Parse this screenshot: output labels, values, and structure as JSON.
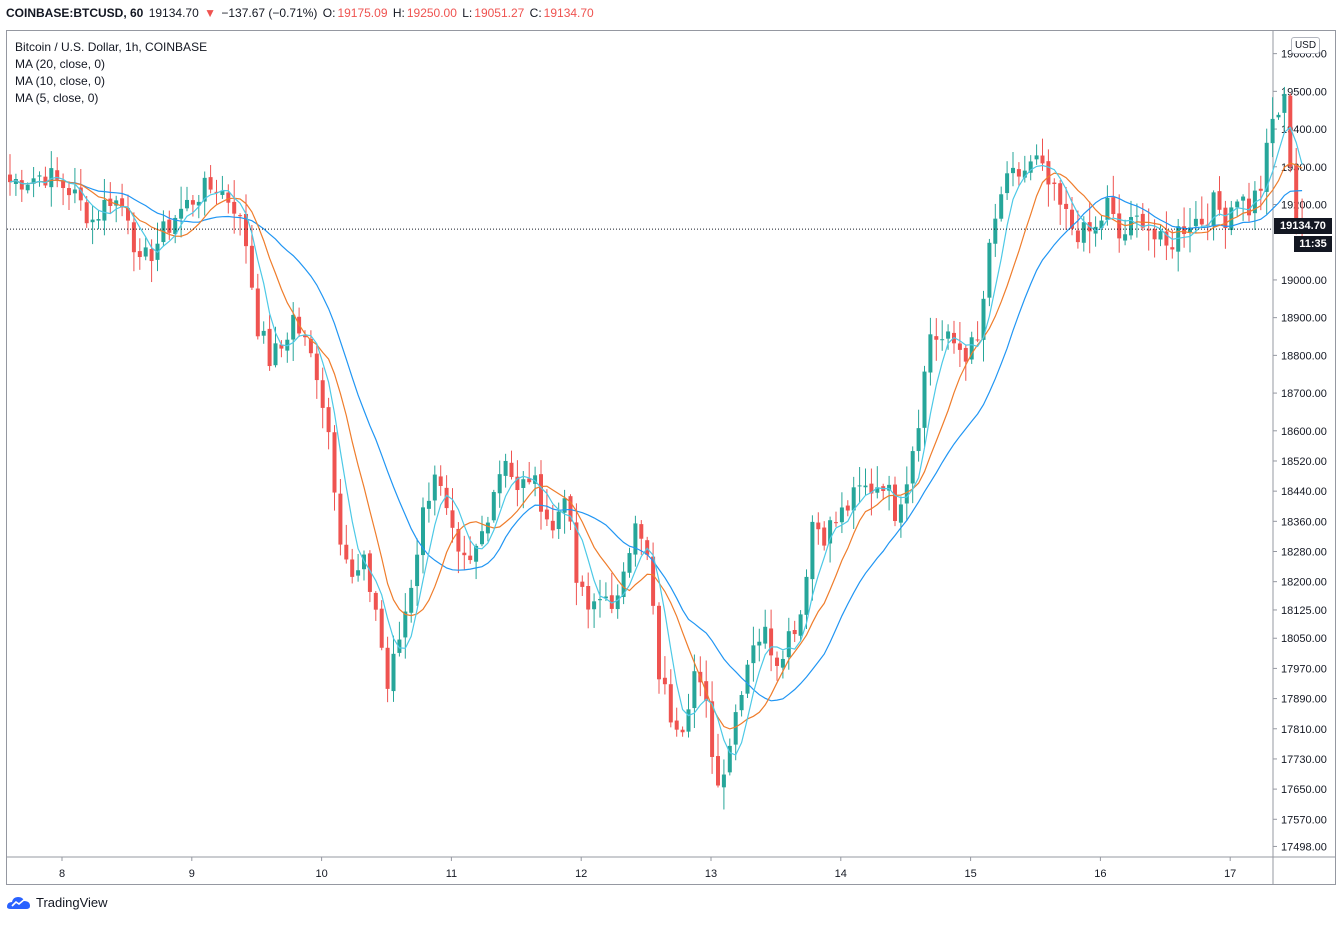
{
  "header": {
    "symbol": "COINBASE:BTCUSD, 60",
    "last": "19134.70",
    "arrow": "▼",
    "change": "−137.67 (−0.71%)",
    "o_label": "O:",
    "o_value": "19175.09",
    "h_label": "H:",
    "h_value": "19250.00",
    "l_label": "L:",
    "l_value": "19051.27",
    "c_label": "C:",
    "c_value": "19134.70"
  },
  "legend": {
    "title": "Bitcoin / U.S. Dollar, 1h, COINBASE",
    "ma1": "MA (20, close, 0)",
    "ma2": "MA (10, close, 0)",
    "ma3": "MA (5, close, 0)"
  },
  "price_axis": {
    "currency": "USD",
    "last_price_tag": "19134.70",
    "countdown_tag": "11:35"
  },
  "footer": {
    "brand": "TradingView"
  },
  "colors": {
    "up": "#26a69a",
    "down": "#ef5350",
    "ma20": "#2196f3",
    "ma10": "#ef7d2c",
    "ma5": "#4dc9e6",
    "frame": "#9598a1"
  },
  "chart_data": {
    "type": "candlestick",
    "title": "Bitcoin / U.S. Dollar, 1h, COINBASE",
    "x_tick_labels": [
      "8",
      "9",
      "10",
      "11",
      "12",
      "13",
      "14",
      "15",
      "16",
      "17"
    ],
    "y_tick_labels": [
      "19600.00",
      "19500.00",
      "19400.00",
      "19300.00",
      "19200.00",
      "19134.70",
      "19000.00",
      "18900.00",
      "18800.00",
      "18700.00",
      "18600.00",
      "18520.00",
      "18440.00",
      "18360.00",
      "18280.00",
      "18200.00",
      "18125.00",
      "18050.00",
      "17970.00",
      "17890.00",
      "17810.00",
      "17730.00",
      "17650.00",
      "17570.00",
      "17498.00"
    ],
    "ylim": [
      17470,
      19660
    ],
    "last_price": 19134.7,
    "price_path": [
      [
        0,
        19260
      ],
      [
        6,
        19280
      ],
      [
        10,
        19240
      ],
      [
        14,
        19160
      ],
      [
        17,
        19220
      ],
      [
        20,
        19180
      ],
      [
        22,
        19030
      ],
      [
        25,
        19100
      ],
      [
        28,
        19170
      ],
      [
        32,
        19230
      ],
      [
        35,
        19250
      ],
      [
        38,
        19200
      ],
      [
        40,
        19100
      ],
      [
        42,
        18880
      ],
      [
        44,
        18790
      ],
      [
        46,
        18820
      ],
      [
        48,
        18900
      ],
      [
        50,
        18830
      ],
      [
        52,
        18760
      ],
      [
        54,
        18600
      ],
      [
        56,
        18330
      ],
      [
        58,
        18200
      ],
      [
        60,
        18240
      ],
      [
        62,
        18130
      ],
      [
        64,
        17920
      ],
      [
        66,
        18050
      ],
      [
        68,
        18200
      ],
      [
        70,
        18380
      ],
      [
        72,
        18500
      ],
      [
        74,
        18370
      ],
      [
        76,
        18250
      ],
      [
        78,
        18240
      ],
      [
        80,
        18330
      ],
      [
        82,
        18450
      ],
      [
        84,
        18540
      ],
      [
        86,
        18430
      ],
      [
        88,
        18480
      ],
      [
        90,
        18420
      ],
      [
        92,
        18330
      ],
      [
        94,
        18450
      ],
      [
        96,
        18200
      ],
      [
        98,
        18120
      ],
      [
        100,
        18180
      ],
      [
        102,
        18100
      ],
      [
        104,
        18260
      ],
      [
        106,
        18340
      ],
      [
        108,
        18260
      ],
      [
        110,
        17960
      ],
      [
        112,
        17850
      ],
      [
        114,
        17830
      ],
      [
        116,
        17960
      ],
      [
        118,
        17860
      ],
      [
        120,
        17660
      ],
      [
        122,
        17780
      ],
      [
        124,
        17930
      ],
      [
        126,
        18050
      ],
      [
        128,
        18060
      ],
      [
        130,
        18000
      ],
      [
        132,
        18060
      ],
      [
        134,
        18120
      ],
      [
        136,
        18360
      ],
      [
        138,
        18330
      ],
      [
        140,
        18360
      ],
      [
        142,
        18400
      ],
      [
        144,
        18440
      ],
      [
        146,
        18450
      ],
      [
        148,
        18470
      ],
      [
        150,
        18390
      ],
      [
        152,
        18480
      ],
      [
        154,
        18640
      ],
      [
        156,
        18860
      ],
      [
        158,
        18840
      ],
      [
        160,
        18830
      ],
      [
        162,
        18810
      ],
      [
        164,
        18830
      ],
      [
        166,
        19070
      ],
      [
        168,
        19230
      ],
      [
        170,
        19270
      ],
      [
        172,
        19290
      ],
      [
        174,
        19310
      ],
      [
        176,
        19250
      ],
      [
        178,
        19190
      ],
      [
        180,
        19140
      ],
      [
        182,
        19120
      ],
      [
        184,
        19130
      ],
      [
        186,
        19200
      ],
      [
        188,
        19110
      ],
      [
        190,
        19140
      ],
      [
        192,
        19170
      ],
      [
        194,
        19110
      ],
      [
        196,
        19080
      ],
      [
        198,
        19130
      ],
      [
        200,
        19160
      ],
      [
        202,
        19160
      ],
      [
        204,
        19200
      ],
      [
        206,
        19170
      ],
      [
        208,
        19230
      ],
      [
        210,
        19190
      ],
      [
        212,
        19250
      ],
      [
        214,
        19420
      ],
      [
        216,
        19470
      ],
      [
        218,
        19175
      ],
      [
        219,
        19134.7
      ]
    ],
    "series": [
      {
        "name": "MA (20, close, 0)",
        "color": "#2196f3"
      },
      {
        "name": "MA (10, close, 0)",
        "color": "#ef7d2c"
      },
      {
        "name": "MA (5, close, 0)",
        "color": "#4dc9e6"
      }
    ]
  }
}
